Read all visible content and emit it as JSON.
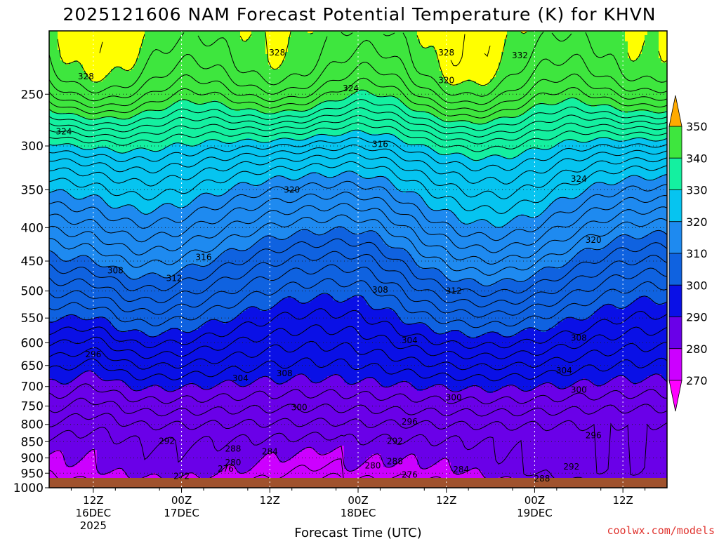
{
  "chart_data": {
    "type": "contour",
    "title": "2025121606 NAM Forecast Potential Temperature (K) for KHVN",
    "xlabel": "Forecast Time (UTC)",
    "y_ticks": [
      250,
      300,
      350,
      400,
      450,
      500,
      550,
      600,
      650,
      700,
      750,
      800,
      850,
      900,
      950,
      1000
    ],
    "y_range": [
      1000,
      200
    ],
    "x_ticks": [
      {
        "top": "12Z",
        "mid": "16DEC",
        "bot": "2025",
        "hour": 6
      },
      {
        "top": "00Z",
        "mid": "17DEC",
        "bot": "",
        "hour": 18
      },
      {
        "top": "12Z",
        "mid": "",
        "bot": "",
        "hour": 30
      },
      {
        "top": "00Z",
        "mid": "18DEC",
        "bot": "",
        "hour": 42
      },
      {
        "top": "12Z",
        "mid": "",
        "bot": "",
        "hour": 54
      },
      {
        "top": "00Z",
        "mid": "19DEC",
        "bot": "",
        "hour": 66
      },
      {
        "top": "12Z",
        "mid": "",
        "bot": "",
        "hour": 78
      }
    ],
    "x_range_hours": [
      0,
      84
    ],
    "contour_interval": 2,
    "units": "K",
    "color_levels": [
      {
        "min": 260,
        "max": 270,
        "color": "#ff00ff"
      },
      {
        "min": 270,
        "max": 280,
        "color": "#cc00ff"
      },
      {
        "min": 280,
        "max": 290,
        "color": "#6a00e8"
      },
      {
        "min": 290,
        "max": 300,
        "color": "#0a10e6"
      },
      {
        "min": 300,
        "max": 310,
        "color": "#0f62e0"
      },
      {
        "min": 310,
        "max": 320,
        "color": "#1e8af0"
      },
      {
        "min": 320,
        "max": 330,
        "color": "#06c4f0"
      },
      {
        "min": 330,
        "max": 340,
        "color": "#14f0a0"
      },
      {
        "min": 340,
        "max": 350,
        "color": "#3ee63e"
      },
      {
        "min": 350,
        "max": 360,
        "color": "#ffff00"
      }
    ],
    "colorbar_ticks": [
      350,
      340,
      330,
      320,
      310,
      300,
      290,
      280,
      270
    ],
    "colorbar_top_color": "#ffaa00",
    "terrain_color": "#a0522d",
    "contour_labels": [
      {
        "text": "328",
        "hour": 5,
        "p": 235
      },
      {
        "text": "324",
        "hour": 2,
        "p": 285
      },
      {
        "text": "328",
        "hour": 31,
        "p": 216
      },
      {
        "text": "324",
        "hour": 41,
        "p": 245
      },
      {
        "text": "328",
        "hour": 54,
        "p": 216
      },
      {
        "text": "320",
        "hour": 54,
        "p": 238
      },
      {
        "text": "332",
        "hour": 64,
        "p": 218
      },
      {
        "text": "316",
        "hour": 45,
        "p": 298
      },
      {
        "text": "320",
        "hour": 33,
        "p": 350
      },
      {
        "text": "324",
        "hour": 72,
        "p": 337
      },
      {
        "text": "320",
        "hour": 74,
        "p": 418
      },
      {
        "text": "316",
        "hour": 21,
        "p": 444
      },
      {
        "text": "308",
        "hour": 9,
        "p": 465
      },
      {
        "text": "312",
        "hour": 17,
        "p": 478
      },
      {
        "text": "308",
        "hour": 45,
        "p": 498
      },
      {
        "text": "312",
        "hour": 55,
        "p": 500
      },
      {
        "text": "304",
        "hour": 49,
        "p": 595
      },
      {
        "text": "296",
        "hour": 6,
        "p": 625
      },
      {
        "text": "304",
        "hour": 26,
        "p": 680
      },
      {
        "text": "308",
        "hour": 32,
        "p": 668
      },
      {
        "text": "308",
        "hour": 72,
        "p": 590
      },
      {
        "text": "304",
        "hour": 70,
        "p": 662
      },
      {
        "text": "300",
        "hour": 72,
        "p": 708
      },
      {
        "text": "300",
        "hour": 55,
        "p": 728
      },
      {
        "text": "300",
        "hour": 34,
        "p": 753
      },
      {
        "text": "296",
        "hour": 49,
        "p": 793
      },
      {
        "text": "296",
        "hour": 74,
        "p": 832
      },
      {
        "text": "292",
        "hour": 16,
        "p": 848
      },
      {
        "text": "292",
        "hour": 47,
        "p": 848
      },
      {
        "text": "288",
        "hour": 25,
        "p": 872
      },
      {
        "text": "284",
        "hour": 30,
        "p": 880
      },
      {
        "text": "288",
        "hour": 47,
        "p": 912
      },
      {
        "text": "280",
        "hour": 44,
        "p": 925
      },
      {
        "text": "280",
        "hour": 25,
        "p": 915
      },
      {
        "text": "284",
        "hour": 56,
        "p": 938
      },
      {
        "text": "292",
        "hour": 71,
        "p": 928
      },
      {
        "text": "276",
        "hour": 24,
        "p": 935
      },
      {
        "text": "276",
        "hour": 49,
        "p": 955
      },
      {
        "text": "272",
        "hour": 18,
        "p": 960
      },
      {
        "text": "288",
        "hour": 67,
        "p": 968
      }
    ]
  },
  "credit": "coolwx.com/models"
}
